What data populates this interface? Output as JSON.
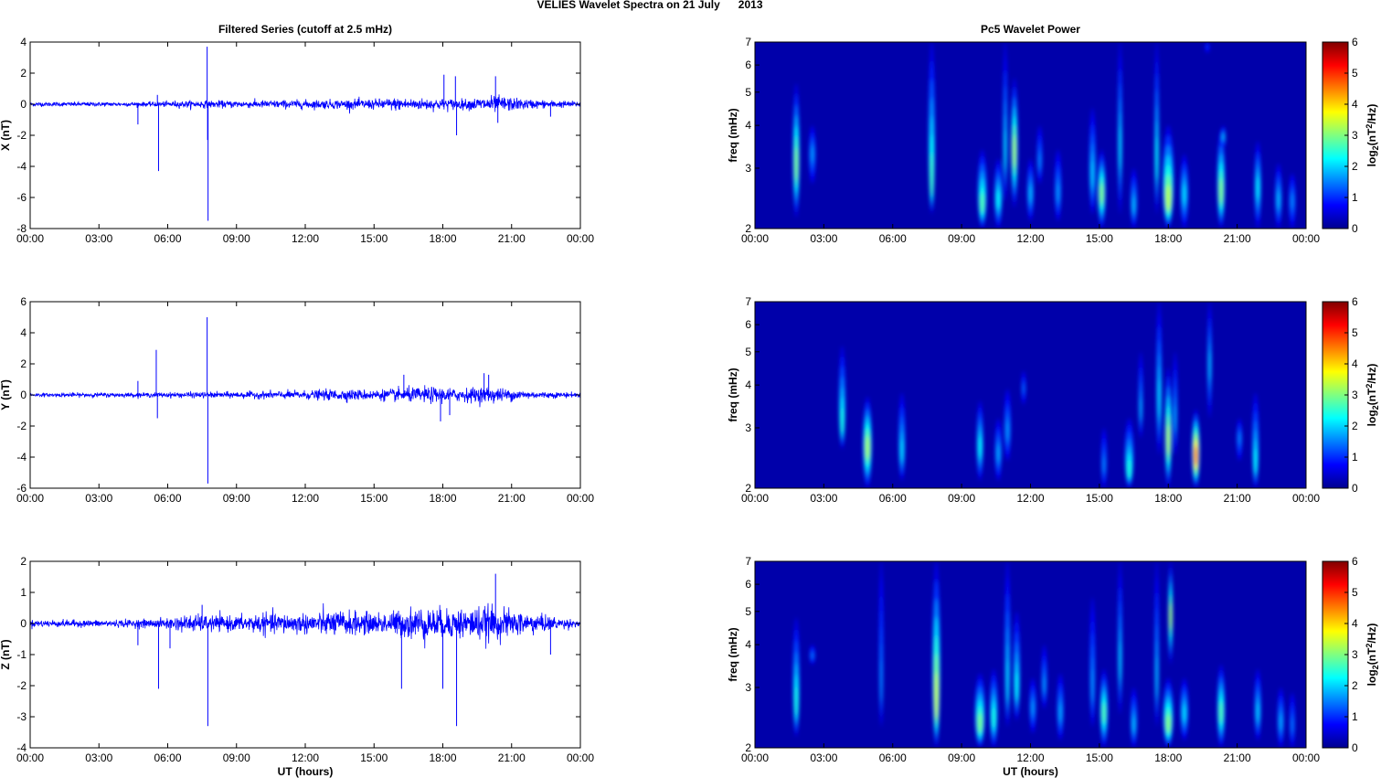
{
  "figure": {
    "title": "VELIES Wavelet Spectra on 21 July      2013",
    "left_column_title": "Filtered Series (cutoff at 2.5 mHz)",
    "right_column_title": "Pc5 Wavelet Power",
    "xlabel": "UT (hours)"
  },
  "chart_data": [
    {
      "type": "line",
      "component": "X",
      "title": "Filtered Series (cutoff at 2.5 mHz)",
      "xlabel": "",
      "ylabel": "X (nT)",
      "xlim": [
        0,
        24
      ],
      "ylim": [
        -8,
        4
      ],
      "xticks": [
        "00:00",
        "03:00",
        "06:00",
        "09:00",
        "12:00",
        "15:00",
        "18:00",
        "21:00",
        "00:00"
      ],
      "yticks": [
        4,
        2,
        0,
        -2,
        -4,
        -6,
        -8
      ],
      "color": "#0000ff",
      "noise_envelope": {
        "x": [
          0,
          3,
          5,
          7,
          9,
          12,
          15,
          16,
          17,
          18,
          19,
          20,
          20.5,
          21,
          22,
          24
        ],
        "amplitude": [
          0.15,
          0.15,
          0.15,
          0.25,
          0.25,
          0.3,
          0.35,
          0.45,
          0.4,
          0.4,
          0.35,
          0.55,
          0.6,
          0.45,
          0.3,
          0.2
        ]
      },
      "spikes": [
        {
          "x": 4.7,
          "y": -1.3
        },
        {
          "x": 5.55,
          "y": 0.6
        },
        {
          "x": 5.6,
          "y": -4.3
        },
        {
          "x": 7.72,
          "y": 3.7
        },
        {
          "x": 7.76,
          "y": -7.5
        },
        {
          "x": 7.74,
          "y": -2.3
        },
        {
          "x": 18.05,
          "y": 1.9
        },
        {
          "x": 18.55,
          "y": 1.8
        },
        {
          "x": 18.6,
          "y": -2.0
        },
        {
          "x": 20.3,
          "y": 1.8
        },
        {
          "x": 20.4,
          "y": -1.2
        },
        {
          "x": 22.7,
          "y": -0.8
        }
      ]
    },
    {
      "type": "line",
      "component": "Y",
      "title": "",
      "xlabel": "",
      "ylabel": "Y (nT)",
      "xlim": [
        0,
        24
      ],
      "ylim": [
        -6,
        6
      ],
      "xticks": [
        "00:00",
        "03:00",
        "06:00",
        "09:00",
        "12:00",
        "15:00",
        "18:00",
        "21:00",
        "00:00"
      ],
      "yticks": [
        6,
        4,
        2,
        0,
        -2,
        -4,
        -6
      ],
      "color": "#0000ff",
      "noise_envelope": {
        "x": [
          0,
          3,
          5,
          7,
          9,
          12,
          13.5,
          15,
          16.5,
          17.5,
          18.5,
          20,
          21,
          22,
          24
        ],
        "amplitude": [
          0.12,
          0.15,
          0.15,
          0.2,
          0.22,
          0.3,
          0.4,
          0.35,
          0.5,
          0.55,
          0.45,
          0.55,
          0.4,
          0.25,
          0.15
        ]
      },
      "spikes": [
        {
          "x": 4.7,
          "y": 0.9
        },
        {
          "x": 5.5,
          "y": 2.9
        },
        {
          "x": 5.55,
          "y": -1.5
        },
        {
          "x": 7.72,
          "y": 5.0
        },
        {
          "x": 7.75,
          "y": -5.7
        },
        {
          "x": 16.3,
          "y": 1.3
        },
        {
          "x": 17.9,
          "y": -1.7
        },
        {
          "x": 18.3,
          "y": -1.3
        },
        {
          "x": 19.8,
          "y": 1.4
        },
        {
          "x": 20.0,
          "y": 1.3
        }
      ]
    },
    {
      "type": "line",
      "component": "Z",
      "title": "",
      "xlabel": "UT (hours)",
      "ylabel": "Z (nT)",
      "xlim": [
        0,
        24
      ],
      "ylim": [
        -4,
        2
      ],
      "xticks": [
        "00:00",
        "03:00",
        "06:00",
        "09:00",
        "12:00",
        "15:00",
        "18:00",
        "21:00",
        "00:00"
      ],
      "yticks": [
        2,
        1,
        0,
        -1,
        -2,
        -3,
        -4
      ],
      "color": "#0000ff",
      "noise_envelope": {
        "x": [
          0,
          3,
          5.5,
          7,
          9,
          10,
          12,
          13.5,
          15,
          16,
          17,
          18,
          19,
          20,
          21,
          22,
          23,
          24
        ],
        "amplitude": [
          0.12,
          0.12,
          0.15,
          0.3,
          0.25,
          0.35,
          0.35,
          0.45,
          0.35,
          0.45,
          0.6,
          0.5,
          0.55,
          0.6,
          0.45,
          0.35,
          0.2,
          0.12
        ]
      },
      "spikes": [
        {
          "x": 4.7,
          "y": -0.7
        },
        {
          "x": 5.6,
          "y": -2.1
        },
        {
          "x": 6.1,
          "y": -0.8
        },
        {
          "x": 7.5,
          "y": 0.6
        },
        {
          "x": 7.75,
          "y": -3.3
        },
        {
          "x": 16.2,
          "y": -2.1
        },
        {
          "x": 18.0,
          "y": -2.1
        },
        {
          "x": 18.6,
          "y": -3.3
        },
        {
          "x": 20.3,
          "y": 1.6
        },
        {
          "x": 22.7,
          "y": -1.0
        }
      ]
    },
    {
      "type": "heatmap",
      "component": "X",
      "title": "Pc5 Wavelet Power",
      "xlabel": "",
      "ylabel": "freq (mHz)",
      "yscale": "log",
      "xlim": [
        0,
        24
      ],
      "ylim": [
        2,
        7
      ],
      "xticks": [
        "00:00",
        "03:00",
        "06:00",
        "09:00",
        "12:00",
        "15:00",
        "18:00",
        "21:00",
        "00:00"
      ],
      "yticks": [
        2,
        3,
        4,
        5,
        6,
        7
      ],
      "colorbar": {
        "label": "log2(nT2/Hz)",
        "ticks": [
          0,
          1,
          2,
          3,
          4,
          5,
          6
        ],
        "range": [
          0,
          6
        ],
        "colormap": "jet"
      },
      "blobs": [
        {
          "t": 1.8,
          "f_low": 2.15,
          "f_high": 5.3,
          "peak_freq": 3.0,
          "power": 3.0,
          "width": 0.3
        },
        {
          "t": 2.5,
          "f_low": 2.7,
          "f_high": 4.0,
          "peak_freq": 3.3,
          "power": 1.6,
          "width": 0.3
        },
        {
          "t": 7.7,
          "f_low": 2.2,
          "f_high": 7.0,
          "peak_freq": 2.6,
          "power": 2.6,
          "width": 0.3
        },
        {
          "t": 9.9,
          "f_low": 2.0,
          "f_high": 3.4,
          "peak_freq": 2.3,
          "power": 2.7,
          "width": 0.4
        },
        {
          "t": 10.6,
          "f_low": 2.0,
          "f_high": 3.2,
          "peak_freq": 2.4,
          "power": 2.2,
          "width": 0.35
        },
        {
          "t": 10.9,
          "f_low": 2.4,
          "f_high": 7.0,
          "peak_freq": 3.2,
          "power": 2.0,
          "width": 0.2
        },
        {
          "t": 11.3,
          "f_low": 2.3,
          "f_high": 5.5,
          "peak_freq": 3.3,
          "power": 3.2,
          "width": 0.3
        },
        {
          "t": 12.0,
          "f_low": 2.1,
          "f_high": 3.2,
          "peak_freq": 2.5,
          "power": 1.8,
          "width": 0.3
        },
        {
          "t": 12.4,
          "f_low": 2.7,
          "f_high": 4.0,
          "peak_freq": 3.1,
          "power": 1.5,
          "width": 0.25
        },
        {
          "t": 13.2,
          "f_low": 2.1,
          "f_high": 3.4,
          "peak_freq": 2.5,
          "power": 1.6,
          "width": 0.3
        },
        {
          "t": 14.7,
          "f_low": 2.2,
          "f_high": 4.5,
          "peak_freq": 2.8,
          "power": 1.9,
          "width": 0.3
        },
        {
          "t": 15.1,
          "f_low": 2.0,
          "f_high": 3.4,
          "peak_freq": 2.5,
          "power": 3.0,
          "width": 0.35
        },
        {
          "t": 15.9,
          "f_low": 2.2,
          "f_high": 7.0,
          "peak_freq": 3.3,
          "power": 2.0,
          "width": 0.2
        },
        {
          "t": 16.5,
          "f_low": 2.0,
          "f_high": 3.0,
          "peak_freq": 2.3,
          "power": 1.8,
          "width": 0.3
        },
        {
          "t": 17.5,
          "f_low": 2.2,
          "f_high": 7.0,
          "peak_freq": 3.0,
          "power": 2.2,
          "width": 0.2
        },
        {
          "t": 18.0,
          "f_low": 2.0,
          "f_high": 4.0,
          "peak_freq": 2.35,
          "power": 3.3,
          "width": 0.5
        },
        {
          "t": 18.7,
          "f_low": 2.0,
          "f_high": 3.3,
          "peak_freq": 2.5,
          "power": 2.0,
          "width": 0.35
        },
        {
          "t": 20.3,
          "f_low": 2.0,
          "f_high": 3.9,
          "peak_freq": 2.5,
          "power": 3.0,
          "width": 0.35
        },
        {
          "t": 20.4,
          "f_low": 3.4,
          "f_high": 4.0,
          "peak_freq": 3.7,
          "power": 1.8,
          "width": 0.2
        },
        {
          "t": 21.9,
          "f_low": 2.0,
          "f_high": 3.6,
          "peak_freq": 2.6,
          "power": 2.1,
          "width": 0.3
        },
        {
          "t": 22.8,
          "f_low": 2.0,
          "f_high": 3.1,
          "peak_freq": 2.4,
          "power": 1.8,
          "width": 0.3
        },
        {
          "t": 23.4,
          "f_low": 2.0,
          "f_high": 2.9,
          "peak_freq": 2.4,
          "power": 1.5,
          "width": 0.3
        },
        {
          "t": 19.7,
          "f_low": 6.5,
          "f_high": 7.0,
          "peak_freq": 6.8,
          "power": 1.0,
          "width": 0.2
        }
      ]
    },
    {
      "type": "heatmap",
      "component": "Y",
      "title": "",
      "xlabel": "",
      "ylabel": "freq (mHz)",
      "yscale": "log",
      "xlim": [
        0,
        24
      ],
      "ylim": [
        2,
        7
      ],
      "xticks": [
        "00:00",
        "03:00",
        "06:00",
        "09:00",
        "12:00",
        "15:00",
        "18:00",
        "21:00",
        "00:00"
      ],
      "yticks": [
        2,
        3,
        4,
        5,
        6,
        7
      ],
      "colorbar": {
        "label": "log2(nT2/Hz)",
        "ticks": [
          0,
          1,
          2,
          3,
          4,
          5,
          6
        ],
        "range": [
          0,
          6
        ],
        "colormap": "jet"
      },
      "blobs": [
        {
          "t": 3.8,
          "f_low": 2.6,
          "f_high": 5.2,
          "peak_freq": 3.0,
          "power": 2.4,
          "width": 0.3
        },
        {
          "t": 4.9,
          "f_low": 2.0,
          "f_high": 3.7,
          "peak_freq": 2.6,
          "power": 3.2,
          "width": 0.4
        },
        {
          "t": 6.4,
          "f_low": 2.1,
          "f_high": 3.8,
          "peak_freq": 2.5,
          "power": 2.0,
          "width": 0.3
        },
        {
          "t": 9.8,
          "f_low": 2.1,
          "f_high": 3.6,
          "peak_freq": 2.6,
          "power": 2.2,
          "width": 0.3
        },
        {
          "t": 10.6,
          "f_low": 2.1,
          "f_high": 3.2,
          "peak_freq": 2.5,
          "power": 1.7,
          "width": 0.3
        },
        {
          "t": 11.0,
          "f_low": 2.4,
          "f_high": 3.9,
          "peak_freq": 2.9,
          "power": 1.6,
          "width": 0.3
        },
        {
          "t": 11.7,
          "f_low": 3.5,
          "f_high": 4.4,
          "peak_freq": 3.9,
          "power": 1.3,
          "width": 0.2
        },
        {
          "t": 15.2,
          "f_low": 2.0,
          "f_high": 3.0,
          "peak_freq": 2.3,
          "power": 1.5,
          "width": 0.25
        },
        {
          "t": 16.3,
          "f_low": 2.0,
          "f_high": 3.2,
          "peak_freq": 2.2,
          "power": 2.4,
          "width": 0.4
        },
        {
          "t": 16.8,
          "f_low": 2.8,
          "f_high": 5.0,
          "peak_freq": 3.3,
          "power": 1.7,
          "width": 0.2
        },
        {
          "t": 17.6,
          "f_low": 2.5,
          "f_high": 7.0,
          "peak_freq": 3.5,
          "power": 2.0,
          "width": 0.25
        },
        {
          "t": 18.0,
          "f_low": 2.0,
          "f_high": 4.5,
          "peak_freq": 2.7,
          "power": 3.3,
          "width": 0.3
        },
        {
          "t": 18.3,
          "f_low": 2.5,
          "f_high": 5.0,
          "peak_freq": 3.1,
          "power": 1.7,
          "width": 0.2
        },
        {
          "t": 19.2,
          "f_low": 2.0,
          "f_high": 3.4,
          "peak_freq": 2.45,
          "power": 4.5,
          "width": 0.35
        },
        {
          "t": 19.8,
          "f_low": 3.2,
          "f_high": 7.0,
          "peak_freq": 4.5,
          "power": 1.8,
          "width": 0.2
        },
        {
          "t": 21.1,
          "f_low": 2.4,
          "f_high": 3.2,
          "peak_freq": 2.8,
          "power": 1.5,
          "width": 0.25
        },
        {
          "t": 21.8,
          "f_low": 2.0,
          "f_high": 3.8,
          "peak_freq": 2.3,
          "power": 2.2,
          "width": 0.3
        }
      ]
    },
    {
      "type": "heatmap",
      "component": "Z",
      "title": "",
      "xlabel": "UT (hours)",
      "ylabel": "freq (mHz)",
      "yscale": "log",
      "xlim": [
        0,
        24
      ],
      "ylim": [
        2,
        7
      ],
      "xticks": [
        "00:00",
        "03:00",
        "06:00",
        "09:00",
        "12:00",
        "15:00",
        "18:00",
        "21:00",
        "00:00"
      ],
      "yticks": [
        2,
        3,
        4,
        5,
        6,
        7
      ],
      "colorbar": {
        "label": "log2(nT2/Hz)",
        "ticks": [
          0,
          1,
          2,
          3,
          4,
          5,
          6
        ],
        "range": [
          0,
          6
        ],
        "colormap": "jet"
      },
      "blobs": [
        {
          "t": 1.8,
          "f_low": 2.15,
          "f_high": 4.8,
          "peak_freq": 2.6,
          "power": 2.4,
          "width": 0.3
        },
        {
          "t": 2.5,
          "f_low": 3.5,
          "f_high": 4.0,
          "peak_freq": 3.7,
          "power": 1.4,
          "width": 0.25
        },
        {
          "t": 5.5,
          "f_low": 2.3,
          "f_high": 7.0,
          "peak_freq": 2.9,
          "power": 1.5,
          "width": 0.2
        },
        {
          "t": 7.9,
          "f_low": 2.0,
          "f_high": 7.0,
          "peak_freq": 2.6,
          "power": 3.4,
          "width": 0.35
        },
        {
          "t": 9.8,
          "f_low": 2.0,
          "f_high": 3.3,
          "peak_freq": 2.3,
          "power": 2.9,
          "width": 0.45
        },
        {
          "t": 10.4,
          "f_low": 2.0,
          "f_high": 3.4,
          "peak_freq": 2.4,
          "power": 2.4,
          "width": 0.35
        },
        {
          "t": 11.0,
          "f_low": 2.3,
          "f_high": 7.0,
          "peak_freq": 2.9,
          "power": 2.0,
          "width": 0.25
        },
        {
          "t": 11.4,
          "f_low": 2.4,
          "f_high": 5.0,
          "peak_freq": 2.9,
          "power": 2.2,
          "width": 0.3
        },
        {
          "t": 12.1,
          "f_low": 2.2,
          "f_high": 3.2,
          "peak_freq": 2.6,
          "power": 1.6,
          "width": 0.3
        },
        {
          "t": 12.6,
          "f_low": 2.6,
          "f_high": 4.0,
          "peak_freq": 3.0,
          "power": 1.6,
          "width": 0.25
        },
        {
          "t": 13.3,
          "f_low": 2.1,
          "f_high": 3.3,
          "peak_freq": 2.5,
          "power": 1.7,
          "width": 0.3
        },
        {
          "t": 14.7,
          "f_low": 2.3,
          "f_high": 5.5,
          "peak_freq": 2.9,
          "power": 1.6,
          "width": 0.25
        },
        {
          "t": 15.2,
          "f_low": 2.0,
          "f_high": 3.4,
          "peak_freq": 2.5,
          "power": 2.7,
          "width": 0.35
        },
        {
          "t": 15.9,
          "f_low": 2.5,
          "f_high": 7.0,
          "peak_freq": 3.4,
          "power": 1.9,
          "width": 0.2
        },
        {
          "t": 16.5,
          "f_low": 2.0,
          "f_high": 3.0,
          "peak_freq": 2.3,
          "power": 1.8,
          "width": 0.3
        },
        {
          "t": 17.5,
          "f_low": 2.3,
          "f_high": 7.0,
          "peak_freq": 3.0,
          "power": 1.8,
          "width": 0.2
        },
        {
          "t": 18.0,
          "f_low": 2.0,
          "f_high": 3.2,
          "peak_freq": 2.3,
          "power": 3.0,
          "width": 0.45
        },
        {
          "t": 18.1,
          "f_low": 3.5,
          "f_high": 7.0,
          "peak_freq": 4.8,
          "power": 3.2,
          "width": 0.2
        },
        {
          "t": 18.7,
          "f_low": 2.1,
          "f_high": 3.2,
          "peak_freq": 2.5,
          "power": 2.0,
          "width": 0.35
        },
        {
          "t": 20.3,
          "f_low": 2.0,
          "f_high": 3.5,
          "peak_freq": 2.5,
          "power": 2.7,
          "width": 0.35
        },
        {
          "t": 21.9,
          "f_low": 2.1,
          "f_high": 3.4,
          "peak_freq": 2.5,
          "power": 1.9,
          "width": 0.3
        },
        {
          "t": 22.9,
          "f_low": 2.0,
          "f_high": 3.0,
          "peak_freq": 2.35,
          "power": 1.7,
          "width": 0.3
        },
        {
          "t": 23.4,
          "f_low": 2.0,
          "f_high": 2.9,
          "peak_freq": 2.3,
          "power": 1.4,
          "width": 0.25
        }
      ]
    }
  ]
}
